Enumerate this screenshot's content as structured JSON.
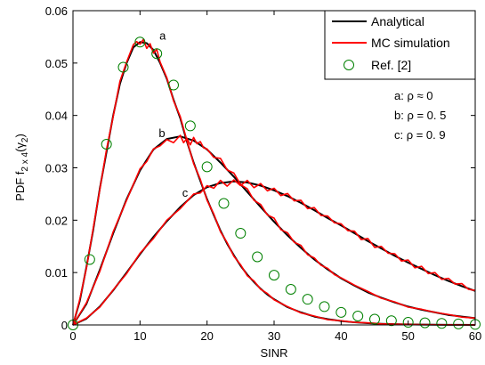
{
  "chart_data": {
    "type": "line",
    "xlabel": "SINR",
    "ylabel_prefix": "PDF f",
    "ylabel_sub": "2 x 4",
    "ylabel_arg": "(γ",
    "ylabel_arg_sub": "2",
    "ylabel_close": ")",
    "xlim": [
      0,
      60
    ],
    "ylim": [
      0,
      0.06
    ],
    "xticks": [
      0,
      10,
      20,
      30,
      40,
      50,
      60
    ],
    "xtick_labels": [
      "0",
      "10",
      "20",
      "30",
      "40",
      "50",
      "60"
    ],
    "yticks": [
      0,
      0.01,
      0.02,
      0.03,
      0.04,
      0.05,
      0.06
    ],
    "ytick_labels": [
      "0",
      "0.01",
      "0.02",
      "0.03",
      "0.04",
      "0.05",
      "0.06"
    ],
    "grid": false,
    "legend": {
      "placement": "top-right",
      "entries": [
        {
          "label": "Analytical",
          "style": "line",
          "color": "#000000"
        },
        {
          "label": "MC simulation",
          "style": "line",
          "color": "#ff0000"
        },
        {
          "label": "Ref. [2]",
          "style": "circle",
          "color": "#008000"
        }
      ]
    },
    "annotations": {
      "params": [
        "a: ρ ≈ 0",
        "b: ρ = 0. 5",
        "c: ρ = 0. 9"
      ],
      "curve_labels": [
        {
          "text": "a",
          "x": 12.9,
          "y": 0.0545
        },
        {
          "text": "b",
          "x": 12.8,
          "y": 0.0359
        },
        {
          "text": "c",
          "x": 16.3,
          "y": 0.0245
        }
      ]
    },
    "series": [
      {
        "name": "a",
        "analytical": {
          "x": [
            0,
            1,
            2,
            3,
            4,
            5,
            6,
            7,
            8,
            9,
            10,
            11,
            12,
            13,
            14,
            15,
            16,
            17,
            18,
            19,
            20,
            21,
            22,
            23,
            24,
            25,
            26,
            27,
            28,
            29,
            30,
            32,
            34,
            36,
            38,
            40,
            42,
            44,
            46,
            48,
            50,
            52,
            54,
            56,
            58,
            60
          ],
          "y": [
            0,
            0.0045,
            0.011,
            0.018,
            0.026,
            0.033,
            0.04,
            0.046,
            0.05,
            0.053,
            0.054,
            0.0538,
            0.0525,
            0.05,
            0.047,
            0.043,
            0.0395,
            0.035,
            0.031,
            0.0275,
            0.024,
            0.021,
            0.018,
            0.0155,
            0.0133,
            0.0113,
            0.0096,
            0.0082,
            0.0069,
            0.0058,
            0.0049,
            0.0034,
            0.0024,
            0.0016,
            0.0011,
            0.00075,
            0.0005,
            0.00033,
            0.00022,
            0.00014,
            0.0001,
            6e-05,
            4e-05,
            3e-05,
            2e-05,
            1e-05
          ]
        },
        "mc": {
          "x": [
            0,
            1,
            2,
            3,
            4,
            5,
            6,
            7,
            8,
            9,
            9.5,
            10,
            10.5,
            11,
            11.5,
            12,
            12.5,
            13,
            14,
            15,
            16,
            17,
            18,
            19,
            20,
            21,
            22,
            23,
            24,
            25,
            26,
            27,
            28,
            29,
            30,
            32,
            34,
            36,
            38,
            40,
            42,
            44,
            46,
            48,
            50,
            52,
            54,
            56,
            58,
            60
          ],
          "y": [
            0,
            0.0048,
            0.0108,
            0.0183,
            0.0258,
            0.0335,
            0.0398,
            0.0465,
            0.0502,
            0.0535,
            0.0541,
            0.0536,
            0.0545,
            0.0528,
            0.0537,
            0.0519,
            0.0526,
            0.0502,
            0.0472,
            0.0428,
            0.0398,
            0.0352,
            0.0308,
            0.0278,
            0.0238,
            0.0212,
            0.0178,
            0.0157,
            0.0131,
            0.0115,
            0.0094,
            0.0084,
            0.0068,
            0.006,
            0.0048,
            0.0035,
            0.0023,
            0.0017,
            0.001,
            0.0008,
            0.0005,
            0.0004,
            0.0002,
            0.00015,
            0.0001,
            6e-05,
            4e-05,
            3e-05,
            2e-05,
            1e-05
          ]
        }
      },
      {
        "name": "b",
        "analytical": {
          "x": [
            0,
            2,
            4,
            6,
            8,
            10,
            12,
            14,
            16,
            18,
            20,
            22,
            24,
            26,
            28,
            30,
            32,
            34,
            36,
            38,
            40,
            42,
            44,
            46,
            48,
            50,
            52,
            54,
            56,
            58,
            60
          ],
          "y": [
            0,
            0.004,
            0.0105,
            0.0175,
            0.024,
            0.0295,
            0.0335,
            0.0355,
            0.036,
            0.0352,
            0.0335,
            0.031,
            0.0283,
            0.0254,
            0.0225,
            0.0197,
            0.0171,
            0.0147,
            0.0125,
            0.0106,
            0.0089,
            0.0075,
            0.0062,
            0.0052,
            0.0043,
            0.0035,
            0.0029,
            0.0024,
            0.0019,
            0.0016,
            0.0013
          ]
        },
        "mc": {
          "x": [
            0,
            2,
            4,
            6,
            8,
            10,
            11,
            12,
            13,
            14,
            15,
            16,
            16.5,
            17,
            17.5,
            18,
            18.5,
            19,
            19.5,
            20,
            21,
            22,
            23,
            24,
            25,
            26,
            27,
            28,
            29,
            30,
            31,
            32,
            33,
            34,
            35,
            36,
            37,
            38,
            39,
            40,
            42,
            44,
            46,
            48,
            50,
            52,
            54,
            56,
            58,
            60
          ],
          "y": [
            0,
            0.0042,
            0.0102,
            0.0178,
            0.0238,
            0.0298,
            0.0312,
            0.0336,
            0.0342,
            0.0354,
            0.0348,
            0.0362,
            0.0348,
            0.0356,
            0.0344,
            0.0358,
            0.0346,
            0.035,
            0.0338,
            0.0336,
            0.032,
            0.0318,
            0.0296,
            0.029,
            0.0268,
            0.026,
            0.0238,
            0.023,
            0.021,
            0.0204,
            0.0182,
            0.0176,
            0.0158,
            0.0152,
            0.0134,
            0.0128,
            0.0114,
            0.0108,
            0.0096,
            0.009,
            0.0076,
            0.0064,
            0.0051,
            0.0044,
            0.0034,
            0.003,
            0.0024,
            0.002,
            0.0015,
            0.0013
          ]
        }
      },
      {
        "name": "c",
        "analytical": {
          "x": [
            0,
            2,
            4,
            6,
            8,
            10,
            12,
            14,
            16,
            18,
            20,
            22,
            24,
            26,
            28,
            30,
            32,
            34,
            36,
            38,
            40,
            42,
            44,
            46,
            48,
            50,
            52,
            54,
            56,
            58,
            60
          ],
          "y": [
            0,
            0.0012,
            0.0035,
            0.0066,
            0.01,
            0.0135,
            0.0168,
            0.0198,
            0.0225,
            0.0248,
            0.0263,
            0.0271,
            0.0274,
            0.0272,
            0.0266,
            0.0257,
            0.0246,
            0.0233,
            0.0219,
            0.0204,
            0.019,
            0.0175,
            0.016,
            0.0146,
            0.0132,
            0.0119,
            0.0107,
            0.0095,
            0.0084,
            0.0074,
            0.0065
          ]
        },
        "mc": {
          "x": [
            0,
            2,
            4,
            6,
            8,
            10,
            12,
            14,
            16,
            18,
            19,
            20,
            21,
            22,
            23,
            24,
            25,
            26,
            27,
            28,
            29,
            30,
            31,
            32,
            33,
            34,
            35,
            36,
            37,
            38,
            39,
            40,
            41,
            42,
            43,
            44,
            45,
            46,
            47,
            48,
            49,
            50,
            51,
            52,
            53,
            54,
            55,
            56,
            57,
            58,
            59,
            60
          ],
          "y": [
            0,
            0.0013,
            0.0034,
            0.0067,
            0.0098,
            0.0137,
            0.0165,
            0.02,
            0.0222,
            0.025,
            0.0252,
            0.0266,
            0.0261,
            0.0276,
            0.0265,
            0.0277,
            0.0266,
            0.0276,
            0.0262,
            0.027,
            0.0256,
            0.0261,
            0.0247,
            0.0251,
            0.0237,
            0.0238,
            0.0222,
            0.0224,
            0.0209,
            0.0208,
            0.0195,
            0.0193,
            0.018,
            0.0179,
            0.0163,
            0.0165,
            0.0148,
            0.015,
            0.0137,
            0.0136,
            0.0122,
            0.0124,
            0.0109,
            0.0112,
            0.0098,
            0.01,
            0.0087,
            0.0089,
            0.0078,
            0.0079,
            0.0068,
            0.0066
          ]
        }
      }
    ],
    "ref_points": {
      "name": "Ref. [2]",
      "x": [
        0,
        2.5,
        5,
        7.5,
        10,
        12.5,
        15,
        17.5,
        20,
        22.5,
        25,
        27.5,
        30,
        32.5,
        35,
        37.5,
        40,
        42.5,
        45,
        47.5,
        50,
        52.5,
        55,
        57.5,
        60
      ],
      "y": [
        0,
        0.0125,
        0.0345,
        0.0492,
        0.054,
        0.0518,
        0.0458,
        0.038,
        0.0302,
        0.0232,
        0.0175,
        0.013,
        0.0095,
        0.0068,
        0.0049,
        0.0035,
        0.0024,
        0.0017,
        0.0011,
        0.0008,
        0.0005,
        0.0004,
        0.0003,
        0.0002,
        0.0001
      ]
    },
    "colors": {
      "analytical": "#000000",
      "mc": "#ff0000",
      "ref": "#008000",
      "axis": "#000000"
    }
  }
}
